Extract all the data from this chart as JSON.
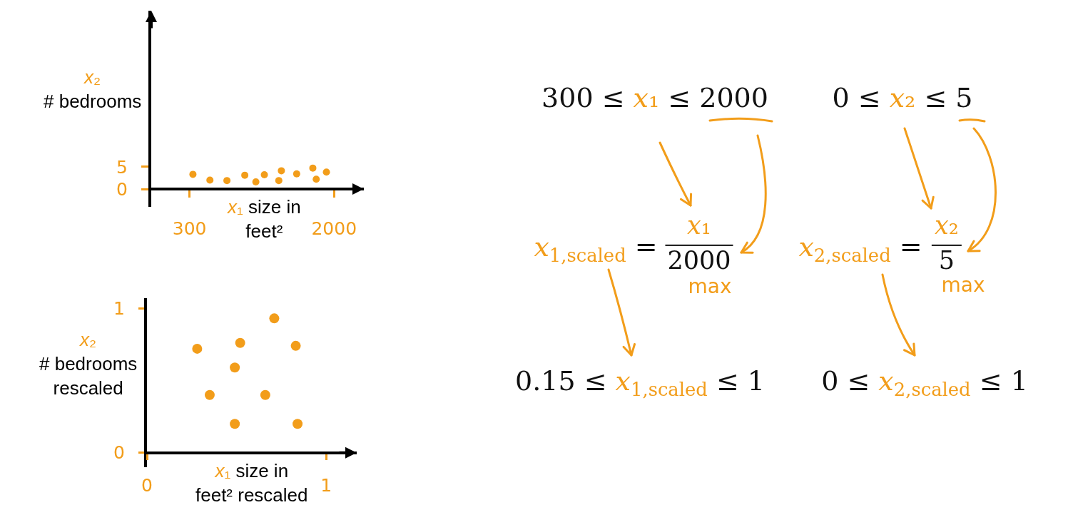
{
  "chart_data": [
    {
      "type": "scatter",
      "xlabel": "x₁ size in\nfeet²",
      "ylabel": "x₂\n# bedrooms",
      "x": [
        340,
        540,
        740,
        950,
        1080,
        1180,
        1380,
        1350,
        1560,
        1750,
        1790,
        1910
      ],
      "values": [
        3.3,
        2.0,
        1.9,
        3.1,
        1.6,
        3.2,
        4.1,
        1.9,
        3.4,
        4.7,
        2.2,
        3.8
      ],
      "color": "#f29d1a",
      "marker": "circle",
      "xlim": [
        -150,
        2350
      ],
      "ylim": [
        -4,
        40
      ],
      "xticks": [
        300,
        2000
      ],
      "yticks": [
        0,
        5
      ]
    },
    {
      "type": "scatter",
      "xlabel": "x₁ size in\nfeet² rescaled",
      "ylabel": "x₂\n# bedrooms\nrescaled",
      "x": [
        0.71,
        0.28,
        0.52,
        0.83,
        0.49,
        0.35,
        0.66,
        0.49,
        0.84
      ],
      "values": [
        0.93,
        0.72,
        0.76,
        0.74,
        0.59,
        0.4,
        0.4,
        0.2,
        0.2
      ],
      "color": "#f29d1a",
      "marker": "circle",
      "xlim": [
        0,
        1.17
      ],
      "ylim": [
        -0.1,
        1.07
      ],
      "xticks": [
        0,
        1
      ],
      "yticks": [
        0,
        1
      ]
    },
    {
      "type": "other",
      "annotations": [
        "300 ≤ x₁ ≤ 2000",
        "0 ≤ x₂ ≤ 5",
        "x$_{1,scaled}$ =",
        "x₁",
        "2000",
        "max",
        "x$_{2,scaled}$ =",
        "x₂",
        "5",
        "max",
        "0.15 ≤ x$_{1,scaled}$ ≤ 1",
        "0 ≤ x$_{2,scaled}$ ≤ 1"
      ]
    }
  ]
}
